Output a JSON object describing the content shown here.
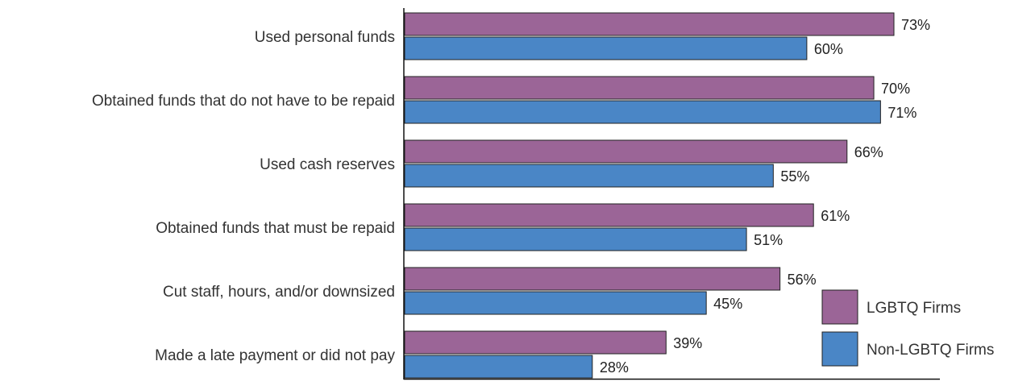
{
  "chart_data": {
    "type": "bar",
    "orientation": "horizontal",
    "categories": [
      "Used personal funds",
      "Obtained funds that do not have to be repaid",
      "Used cash reserves",
      "Obtained funds that must be repaid",
      "Cut staff, hours, and/or downsized",
      "Made a late payment or did not pay"
    ],
    "series": [
      {
        "name": "LGBTQ Firms",
        "color": "#9b6597",
        "values": [
          73,
          70,
          66,
          61,
          56,
          39
        ],
        "labels": [
          "73%",
          "70%",
          "66%",
          "61%",
          "56%",
          "39%"
        ]
      },
      {
        "name": "Non-LGBTQ Firms",
        "color": "#4a86c6",
        "values": [
          60,
          71,
          55,
          51,
          45,
          28
        ],
        "labels": [
          "60%",
          "71%",
          "55%",
          "51%",
          "45%",
          "28%"
        ]
      }
    ],
    "xlim": [
      0,
      80
    ],
    "grid": false,
    "legend": "bottom-right",
    "title": "",
    "xlabel": "",
    "ylabel": ""
  }
}
